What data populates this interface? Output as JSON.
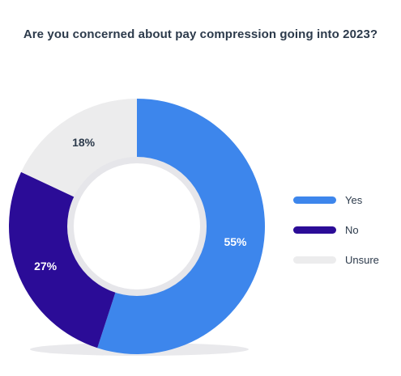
{
  "chart_data": {
    "type": "pie",
    "title": "Are you concerned about pay compression going into 2023?",
    "categories": [
      "Yes",
      "No",
      "Unsure"
    ],
    "values": [
      55,
      27,
      18
    ],
    "data_labels": [
      "55%",
      "27%",
      "18%"
    ],
    "colors": [
      "#3d86ec",
      "#2b0c97",
      "#ececed"
    ],
    "label_colors": [
      "#ffffff",
      "#ffffff",
      "#2c3a4b"
    ],
    "legend_position": "right",
    "donut": true
  }
}
